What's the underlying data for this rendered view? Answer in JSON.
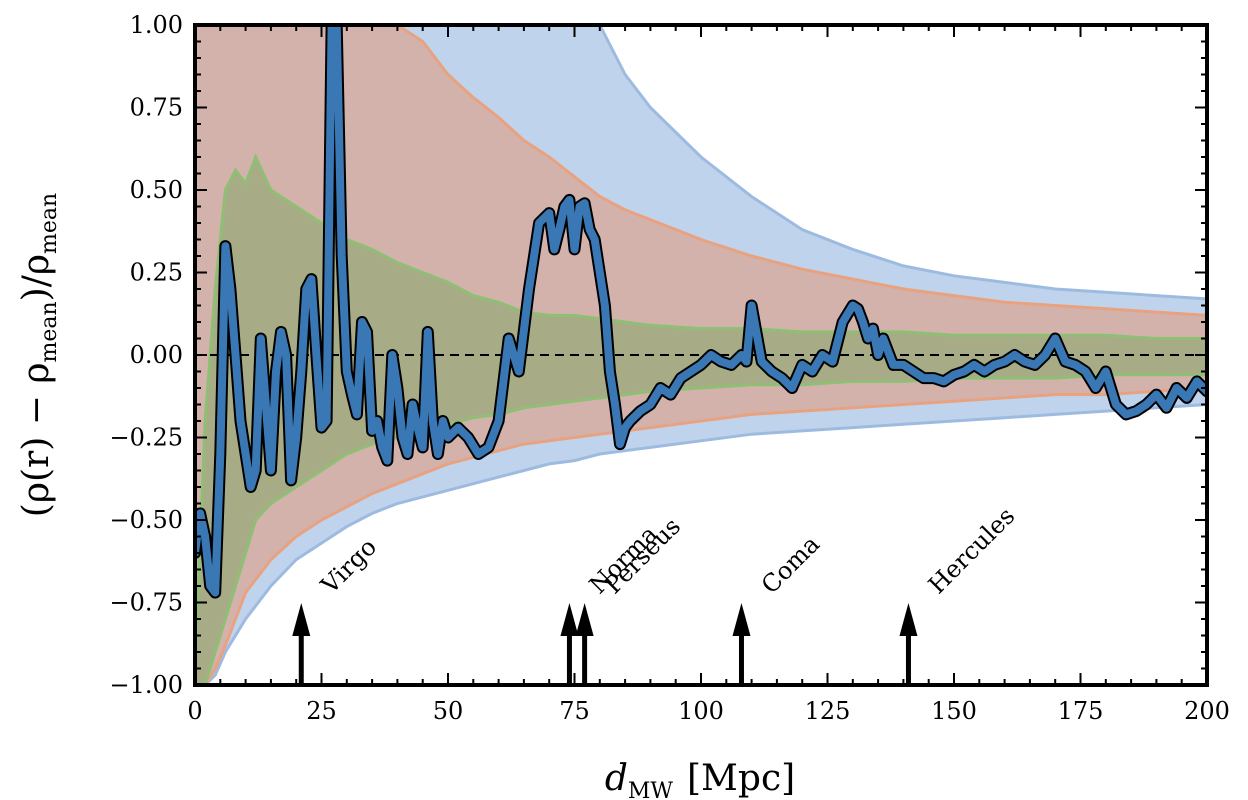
{
  "chart_data": {
    "type": "line",
    "xlabel_main": "d",
    "xlabel_sub": "MW",
    "xlabel_unit": "[Mpc]",
    "ylabel_parts": [
      "(ρ(r) − ρ",
      "mean",
      ")/ρ",
      "mean"
    ],
    "xlim": [
      0,
      200
    ],
    "ylim": [
      -1.0,
      1.0
    ],
    "x_ticks": [
      0,
      25,
      50,
      75,
      100,
      125,
      150,
      175,
      200
    ],
    "x_tick_labels": [
      "0",
      "25",
      "50",
      "75",
      "100",
      "125",
      "150",
      "175",
      "200"
    ],
    "y_ticks": [
      -1.0,
      -0.75,
      -0.5,
      -0.25,
      0.0,
      0.25,
      0.5,
      0.75,
      1.0
    ],
    "y_tick_labels": [
      "−1.00",
      "−0.75",
      "−0.50",
      "−0.25",
      "0.00",
      "0.25",
      "0.50",
      "0.75",
      "1.00"
    ],
    "reference_line": {
      "y": 0.0,
      "style": "dashed"
    },
    "bands": [
      {
        "color": "#aec7e8",
        "edge": "#9dbbe0",
        "x": [
          0,
          2,
          4,
          6,
          8,
          10,
          15,
          20,
          25,
          30,
          35,
          40,
          45,
          50,
          55,
          60,
          65,
          70,
          75,
          80,
          85,
          90,
          100,
          110,
          120,
          130,
          140,
          150,
          160,
          170,
          180,
          190,
          200
        ],
        "upper": [
          1.0,
          1.0,
          1.0,
          1.0,
          1.0,
          1.0,
          1.0,
          1.0,
          1.0,
          1.0,
          1.0,
          1.0,
          1.0,
          1.0,
          1.0,
          1.0,
          1.0,
          1.0,
          1.0,
          1.0,
          0.85,
          0.75,
          0.6,
          0.48,
          0.38,
          0.32,
          0.27,
          0.24,
          0.22,
          0.2,
          0.19,
          0.18,
          0.17
        ],
        "lower": [
          -1.0,
          -1.0,
          -0.97,
          -0.9,
          -0.85,
          -0.8,
          -0.7,
          -0.62,
          -0.57,
          -0.52,
          -0.48,
          -0.45,
          -0.43,
          -0.41,
          -0.39,
          -0.37,
          -0.35,
          -0.33,
          -0.32,
          -0.3,
          -0.29,
          -0.28,
          -0.26,
          -0.24,
          -0.23,
          -0.22,
          -0.21,
          -0.2,
          -0.19,
          -0.18,
          -0.17,
          -0.16,
          -0.15
        ]
      },
      {
        "color": "#d9a99a",
        "edge": "#e8a27f",
        "x": [
          0,
          2,
          4,
          6,
          8,
          10,
          15,
          20,
          25,
          30,
          35,
          40,
          45,
          50,
          55,
          60,
          65,
          70,
          75,
          80,
          85,
          90,
          100,
          110,
          120,
          130,
          140,
          150,
          160,
          170,
          180,
          190,
          200
        ],
        "upper": [
          1.0,
          1.0,
          1.0,
          1.0,
          1.0,
          1.0,
          1.0,
          1.0,
          1.0,
          1.0,
          1.0,
          1.0,
          0.95,
          0.85,
          0.78,
          0.72,
          0.65,
          0.6,
          0.54,
          0.48,
          0.44,
          0.41,
          0.35,
          0.3,
          0.26,
          0.23,
          0.2,
          0.18,
          0.16,
          0.15,
          0.14,
          0.13,
          0.12
        ],
        "lower": [
          -1.0,
          -1.0,
          -0.95,
          -0.88,
          -0.8,
          -0.72,
          -0.62,
          -0.55,
          -0.5,
          -0.46,
          -0.42,
          -0.39,
          -0.36,
          -0.33,
          -0.31,
          -0.29,
          -0.27,
          -0.26,
          -0.25,
          -0.24,
          -0.23,
          -0.22,
          -0.2,
          -0.18,
          -0.17,
          -0.16,
          -0.15,
          -0.14,
          -0.13,
          -0.12,
          -0.12,
          -0.11,
          -0.1
        ]
      },
      {
        "color": "#9caa7b",
        "edge": "#8fbf75",
        "x": [
          0,
          2,
          4,
          6,
          8,
          10,
          12,
          15,
          20,
          25,
          30,
          35,
          40,
          45,
          50,
          55,
          60,
          65,
          70,
          75,
          80,
          85,
          90,
          100,
          110,
          120,
          130,
          140,
          150,
          160,
          170,
          180,
          190,
          200
        ],
        "upper": [
          -0.95,
          -0.2,
          0.2,
          0.5,
          0.56,
          0.52,
          0.6,
          0.5,
          0.45,
          0.4,
          0.35,
          0.32,
          0.28,
          0.25,
          0.22,
          0.18,
          0.16,
          0.13,
          0.12,
          0.12,
          0.11,
          0.1,
          0.09,
          0.08,
          0.08,
          0.07,
          0.07,
          0.07,
          0.06,
          0.06,
          0.06,
          0.06,
          0.05,
          0.05
        ],
        "lower": [
          -1.0,
          -1.0,
          -0.9,
          -0.8,
          -0.7,
          -0.6,
          -0.5,
          -0.45,
          -0.4,
          -0.35,
          -0.3,
          -0.27,
          -0.25,
          -0.23,
          -0.21,
          -0.19,
          -0.18,
          -0.16,
          -0.15,
          -0.14,
          -0.13,
          -0.12,
          -0.11,
          -0.1,
          -0.09,
          -0.09,
          -0.08,
          -0.08,
          -0.07,
          -0.07,
          -0.07,
          -0.06,
          -0.06,
          -0.06
        ]
      }
    ],
    "series": [
      {
        "color": "#3a78b5",
        "x": [
          0,
          1,
          2,
          3,
          4,
          5,
          6,
          7,
          8,
          9,
          10,
          11,
          12,
          13,
          14,
          15,
          16,
          17,
          18,
          19,
          20,
          21,
          22,
          23,
          24,
          25,
          26,
          27,
          28,
          29,
          30,
          31,
          32,
          33,
          34,
          35,
          36,
          37,
          38,
          39,
          40,
          41,
          42,
          43,
          44,
          45,
          46,
          47,
          48,
          49,
          50,
          52,
          54,
          56,
          58,
          60,
          62,
          64,
          66,
          68,
          70,
          71,
          72,
          73,
          74,
          75,
          76,
          77,
          78,
          79,
          80,
          81,
          82,
          83,
          84,
          85,
          86,
          88,
          90,
          92,
          94,
          96,
          98,
          100,
          102,
          104,
          106,
          108,
          109,
          110,
          112,
          114,
          116,
          118,
          120,
          122,
          124,
          126,
          128,
          130,
          131,
          132,
          133,
          134,
          135,
          136,
          138,
          140,
          142,
          144,
          146,
          148,
          150,
          152,
          154,
          156,
          158,
          160,
          162,
          164,
          166,
          168,
          170,
          172,
          174,
          176,
          178,
          180,
          182,
          184,
          186,
          188,
          190,
          192,
          194,
          196,
          198,
          200
        ],
        "y": [
          -0.6,
          -0.48,
          -0.55,
          -0.7,
          -0.72,
          -0.3,
          0.33,
          0.2,
          0.0,
          -0.2,
          -0.3,
          -0.4,
          -0.35,
          0.05,
          -0.15,
          -0.35,
          -0.05,
          0.07,
          0.0,
          -0.38,
          -0.25,
          -0.05,
          0.2,
          0.23,
          0.0,
          -0.22,
          -0.2,
          1.0,
          1.0,
          0.3,
          -0.05,
          -0.12,
          -0.18,
          0.1,
          0.07,
          -0.23,
          -0.2,
          -0.28,
          -0.32,
          0.0,
          -0.1,
          -0.25,
          -0.3,
          -0.15,
          -0.22,
          -0.28,
          0.07,
          -0.2,
          -0.3,
          -0.2,
          -0.25,
          -0.22,
          -0.25,
          -0.3,
          -0.28,
          -0.2,
          0.05,
          -0.05,
          0.2,
          0.4,
          0.43,
          0.32,
          0.38,
          0.45,
          0.47,
          0.32,
          0.45,
          0.46,
          0.38,
          0.35,
          0.25,
          0.15,
          -0.05,
          -0.15,
          -0.27,
          -0.22,
          -0.2,
          -0.17,
          -0.15,
          -0.1,
          -0.12,
          -0.07,
          -0.05,
          -0.03,
          0.0,
          -0.02,
          -0.03,
          0.0,
          -0.02,
          0.15,
          -0.02,
          -0.05,
          -0.07,
          -0.1,
          -0.03,
          -0.05,
          0.0,
          -0.02,
          0.1,
          0.15,
          0.14,
          0.1,
          0.05,
          0.08,
          0.0,
          0.05,
          -0.03,
          -0.03,
          -0.05,
          -0.07,
          -0.07,
          -0.08,
          -0.06,
          -0.05,
          -0.03,
          -0.05,
          -0.03,
          -0.02,
          0.0,
          -0.02,
          -0.03,
          0.0,
          0.05,
          -0.02,
          -0.03,
          -0.05,
          -0.1,
          -0.05,
          -0.15,
          -0.18,
          -0.17,
          -0.15,
          -0.12,
          -0.16,
          -0.1,
          -0.13,
          -0.08,
          -0.11
        ]
      }
    ],
    "annotations": [
      {
        "label": "Virgo",
        "x": 21
      },
      {
        "label": "Norma",
        "x": 74
      },
      {
        "label": "Perseus",
        "x": 77
      },
      {
        "label": "Coma",
        "x": 108
      },
      {
        "label": "Hercules",
        "x": 141
      }
    ]
  }
}
